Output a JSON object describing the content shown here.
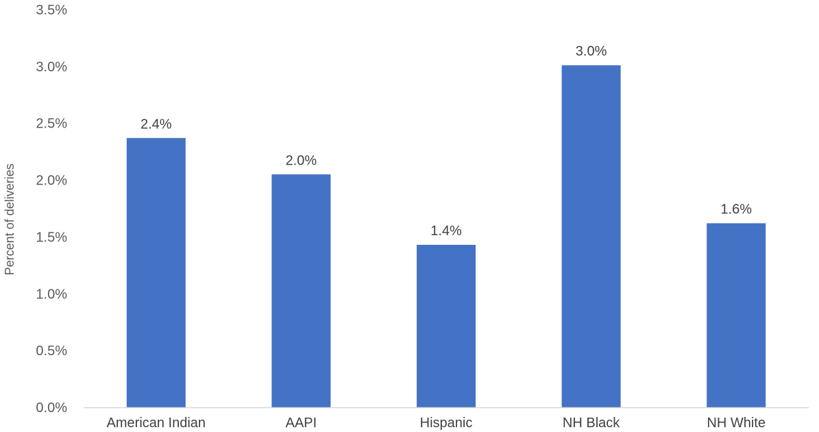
{
  "chart_data": {
    "type": "bar",
    "categories": [
      "American Indian",
      "AAPI",
      "Hispanic",
      "NH Black",
      "NH White"
    ],
    "values": [
      2.37,
      2.05,
      1.43,
      3.01,
      1.62
    ],
    "data_labels": [
      "2.4%",
      "2.0%",
      "1.4%",
      "3.0%",
      "1.6%"
    ],
    "title": "",
    "xlabel": "",
    "ylabel": "Percent of deliveries",
    "ylim": [
      0,
      3.5
    ],
    "yticks": [
      0,
      0.5,
      1.0,
      1.5,
      2.0,
      2.5,
      3.0,
      3.5
    ],
    "ytick_labels": [
      "0.0%",
      "0.5%",
      "1.0%",
      "1.5%",
      "2.0%",
      "2.5%",
      "3.0%",
      "3.5%"
    ],
    "grid": false,
    "bar_color": "#4472C4",
    "axis_color": "#D9D9D9"
  }
}
